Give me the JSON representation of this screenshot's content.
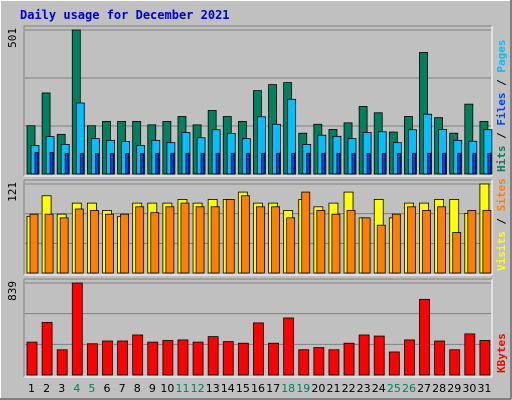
{
  "chart_data": {
    "type": "bar",
    "title": "Daily usage for December 2021",
    "categories": [
      "1",
      "2",
      "3",
      "4",
      "5",
      "6",
      "7",
      "8",
      "9",
      "10",
      "11",
      "12",
      "13",
      "14",
      "15",
      "16",
      "17",
      "18",
      "19",
      "20",
      "21",
      "22",
      "23",
      "24",
      "25",
      "26",
      "27",
      "28",
      "29",
      "30",
      "31"
    ],
    "weekend_days": [
      4,
      5,
      11,
      12,
      18,
      19,
      25,
      26
    ],
    "colors": {
      "hits": "#00805c",
      "files": "#00c0ff",
      "pages": "#0040ff",
      "visits": "#ffff00",
      "sites": "#ff8000",
      "kbytes": "#ff0000",
      "weekday_label": "#000000",
      "weekend_label": "#00805c"
    },
    "panels": [
      {
        "id": "hits-files-pages",
        "ymax": 501,
        "ytick_label": "501",
        "legend": [
          {
            "text": "Hits",
            "color": "#00805c"
          },
          {
            "text": "Files",
            "color": "#0040ff"
          },
          {
            "text": "Pages",
            "color": "#00c0ff"
          }
        ],
        "series": [
          {
            "name": "Hits",
            "color": "#00805c",
            "values": [
              168,
              282,
              138,
              501,
              168,
              183,
              183,
              183,
              171,
              183,
              200,
              171,
              221,
              200,
              183,
              290,
              311,
              318,
              142,
              173,
              155,
              178,
              235,
              213,
              146,
              200,
              423,
              196,
              142,
              243,
              183
            ]
          },
          {
            "name": "Files",
            "color": "#00c0ff",
            "values": [
              99,
              130,
              103,
              247,
              123,
              117,
              113,
              99,
              117,
              109,
              144,
              126,
              154,
              141,
              123,
              199,
              173,
              260,
              103,
              135,
              131,
              123,
              144,
              147,
              109,
              154,
              208,
              155,
              117,
              114,
              154
            ]
          },
          {
            "name": "Pages",
            "color": "#0040ff",
            "values": [
              75,
              75,
              72,
              72,
              72,
              72,
              72,
              72,
              72,
              72,
              72,
              72,
              72,
              72,
              72,
              72,
              72,
              72,
              72,
              72,
              72,
              72,
              72,
              72,
              72,
              72,
              72,
              72,
              72,
              72,
              72
            ]
          }
        ]
      },
      {
        "id": "visits-sites",
        "ymax": 121,
        "ytick_label": "121",
        "legend": [
          {
            "text": "Visits",
            "color": "#ffff00"
          },
          {
            "text": "Sites",
            "color": "#ff8000"
          }
        ],
        "series": [
          {
            "name": "Visits",
            "color": "#ffff00",
            "values": [
              77,
              105,
              80,
              95,
              95,
              85,
              77,
              95,
              95,
              95,
              100,
              95,
              100,
              100,
              110,
              95,
              95,
              85,
              100,
              90,
              95,
              110,
              75,
              100,
              75,
              95,
              95,
              100,
              100,
              81,
              121
            ]
          },
          {
            "name": "Sites",
            "color": "#ff8000",
            "values": [
              80,
              80,
              75,
              87,
              85,
              80,
              80,
              90,
              82,
              90,
              95,
              90,
              90,
              100,
              105,
              90,
              90,
              75,
              110,
              85,
              80,
              85,
              75,
              65,
              80,
              90,
              85,
              90,
              55,
              85,
              85
            ]
          }
        ]
      },
      {
        "id": "kbytes",
        "ymax": 839,
        "ytick_label": "839",
        "legend": [
          {
            "text": "KBytes",
            "color": "#ff0000"
          }
        ],
        "series": [
          {
            "name": "KBytes",
            "color": "#ff0000",
            "values": [
              300,
              480,
              230,
              839,
              285,
              310,
              310,
              365,
              300,
              315,
              320,
              300,
              350,
              305,
              290,
              475,
              290,
              520,
              230,
              250,
              230,
              290,
              365,
              355,
              210,
              320,
              690,
              310,
              230,
              375,
              315
            ]
          }
        ]
      }
    ]
  }
}
